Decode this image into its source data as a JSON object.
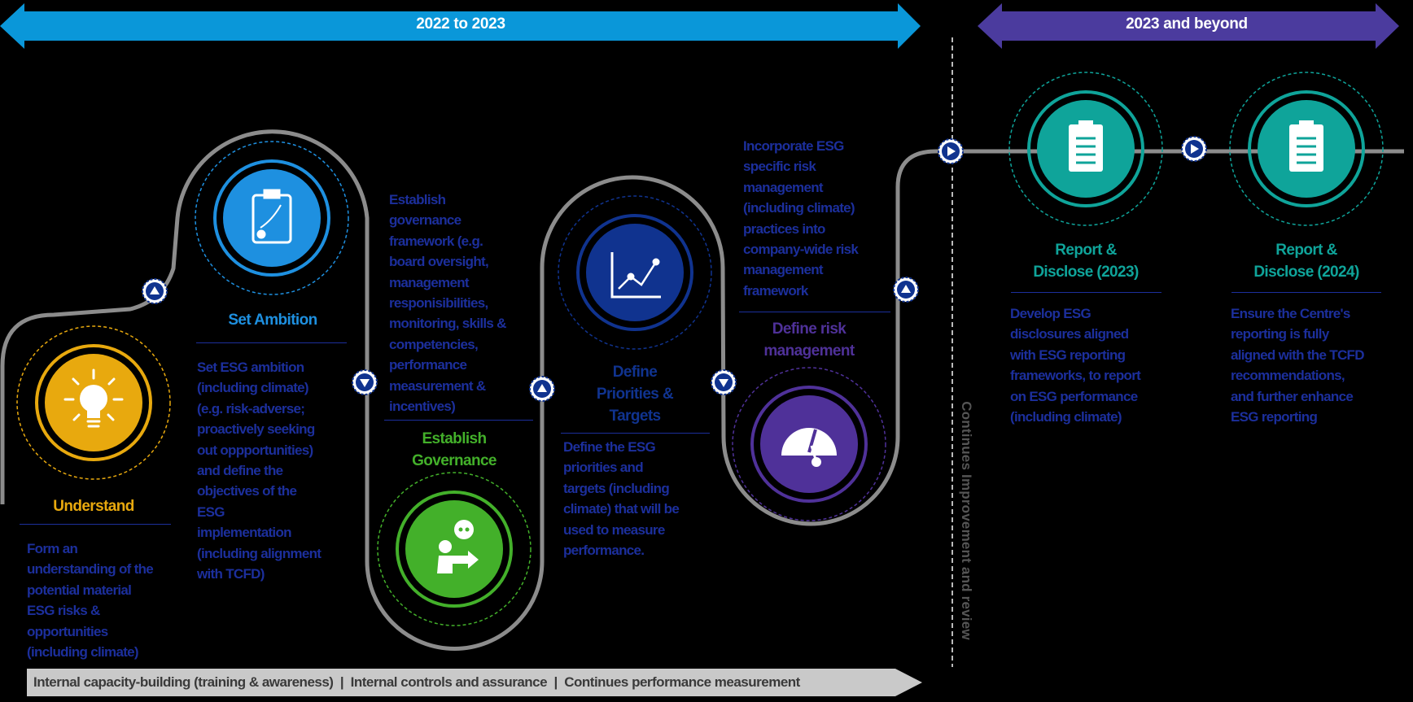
{
  "timeline": {
    "phase1_label": "2022 to 2023",
    "phase2_label": "2023 and beyond",
    "vertical_label": "Continues Improvement and review",
    "bottom_bar": "Internal capacity-building (training & awareness)  |  Internal controls and assurance  |  Continues performance measurement"
  },
  "colors": {
    "phase1": "#0a97d9",
    "phase2": "#4b3b9e",
    "text": "#1c2f9c",
    "understand": "#e8a90e",
    "ambition": "#1e90e0",
    "governance": "#43b02a",
    "priorities": "#10338f",
    "risk": "#4f3199",
    "report": "#0fa49a"
  },
  "steps": [
    {
      "title": "Understand",
      "icon": "lightbulb-icon",
      "desc": "Form an\nunderstanding of the\npotential material\nESG risks &\nopportunities\n(including climate)"
    },
    {
      "title": "Set Ambition",
      "icon": "clipboard-strategy-icon",
      "desc": "Set ESG ambition\n(including climate)\n(e.g. risk-adverse;\nproactively seeking\nout oppportunities)\nand define the\nobjectives of the\nESG\nimplementation\n(including alignment\nwith TCFD)"
    },
    {
      "title": "Establish\nGovernance",
      "icon": "presenter-icon",
      "desc": "Establish\ngovernance\nframework (e.g.\nboard oversight,\nmanagement\nresponisibilities,\nmonitoring, skills &\ncompetencies,\nperformance\nmeasurement &\nincentives)"
    },
    {
      "title": "Define\nPriorities &\nTargets",
      "icon": "chart-icon",
      "desc": "Define the ESG\npriorities and\ntargets (including\nclimate) that will be\nused to measure\nperformance."
    },
    {
      "title": "Define risk\nmanagement",
      "icon": "gauge-icon",
      "desc": "Incorporate ESG\nspecific risk\nmanagement\n(including climate)\npractices into\ncompany-wide risk\nmanagement\nframework"
    },
    {
      "title": "Report &\nDisclose (2023)",
      "icon": "clipboard-icon",
      "desc": "Develop ESG\ndisclosures aligned\nwith ESG reporting\nframeworks, to report\non ESG performance\n(including climate)"
    },
    {
      "title": "Report &\nDisclose (2024)",
      "icon": "clipboard-icon",
      "desc": "Ensure the Centre's\nreporting is fully\naligned with the TCFD\nrecommendations,\nand further enhance\nESG reporting"
    }
  ]
}
